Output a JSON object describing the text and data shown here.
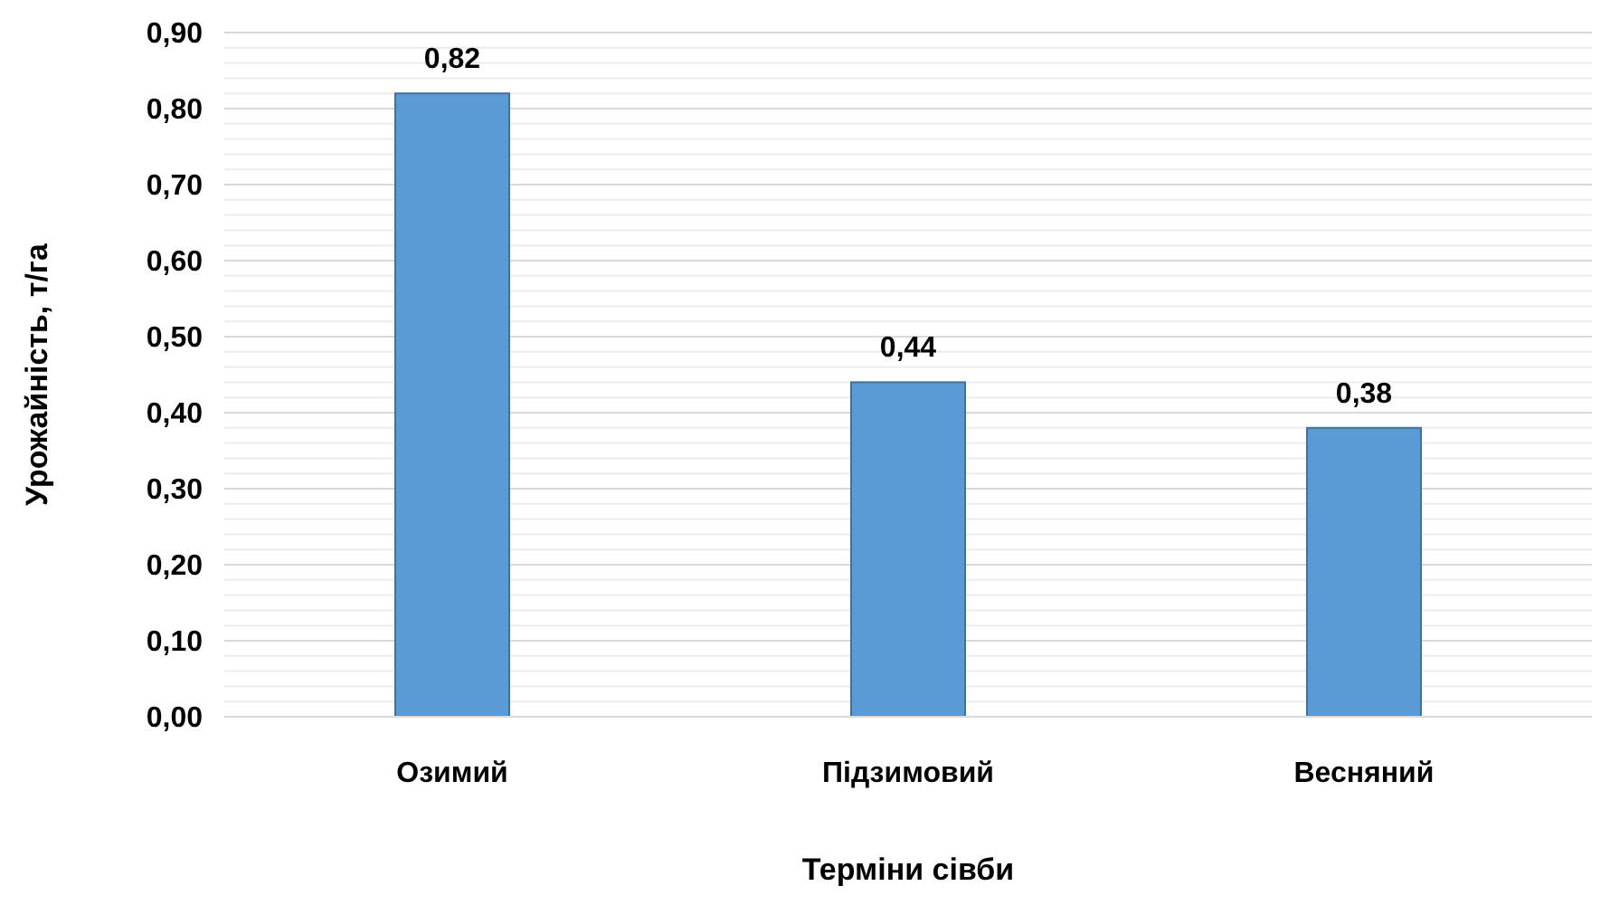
{
  "chart_data": {
    "type": "bar",
    "xlabel": "Терміни сівби",
    "ylabel": "Урожайність, т/га",
    "categories": [
      "Озимий",
      "Підзимовий",
      "Весняний"
    ],
    "values": [
      0.82,
      0.44,
      0.38
    ],
    "color": "#5b9bd5",
    "value_labels": [
      "0,82",
      "0,44",
      "0,38"
    ],
    "ylim": [
      0,
      0.9
    ],
    "yticks": [
      {
        "value": 0,
        "label": "0,00"
      },
      {
        "value": 0.02,
        "label": null
      },
      {
        "value": 0.04,
        "label": null
      },
      {
        "value": 0.06,
        "label": null
      },
      {
        "value": 0.08,
        "label": null
      },
      {
        "value": 0.1,
        "label": "0,10"
      },
      {
        "value": 0.12,
        "label": null
      },
      {
        "value": 0.14,
        "label": null
      },
      {
        "value": 0.16,
        "label": null
      },
      {
        "value": 0.18,
        "label": null
      },
      {
        "value": 0.2,
        "label": "0,20"
      },
      {
        "value": 0.22,
        "label": null
      },
      {
        "value": 0.24,
        "label": null
      },
      {
        "value": 0.26,
        "label": null
      },
      {
        "value": 0.28,
        "label": null
      },
      {
        "value": 0.3,
        "label": "0,30"
      },
      {
        "value": 0.32,
        "label": null
      },
      {
        "value": 0.34,
        "label": null
      },
      {
        "value": 0.36,
        "label": null
      },
      {
        "value": 0.38,
        "label": null
      },
      {
        "value": 0.4,
        "label": "0,40"
      },
      {
        "value": 0.42,
        "label": null
      },
      {
        "value": 0.44,
        "label": null
      },
      {
        "value": 0.46,
        "label": null
      },
      {
        "value": 0.48,
        "label": null
      },
      {
        "value": 0.5,
        "label": "0,50"
      },
      {
        "value": 0.52,
        "label": null
      },
      {
        "value": 0.54,
        "label": null
      },
      {
        "value": 0.56,
        "label": null
      },
      {
        "value": 0.58,
        "label": null
      },
      {
        "value": 0.6,
        "label": "0,60"
      },
      {
        "value": 0.62,
        "label": null
      },
      {
        "value": 0.64,
        "label": null
      },
      {
        "value": 0.66,
        "label": null
      },
      {
        "value": 0.68,
        "label": null
      },
      {
        "value": 0.7,
        "label": "0,70"
      },
      {
        "value": 0.72,
        "label": null
      },
      {
        "value": 0.74,
        "label": null
      },
      {
        "value": 0.76,
        "label": null
      },
      {
        "value": 0.78,
        "label": null
      },
      {
        "value": 0.8,
        "label": "0,80"
      },
      {
        "value": 0.82,
        "label": null
      },
      {
        "value": 0.84,
        "label": null
      },
      {
        "value": 0.86,
        "label": null
      },
      {
        "value": 0.88,
        "label": null
      },
      {
        "value": 0.9,
        "label": "0,90"
      }
    ],
    "grid": "y"
  }
}
